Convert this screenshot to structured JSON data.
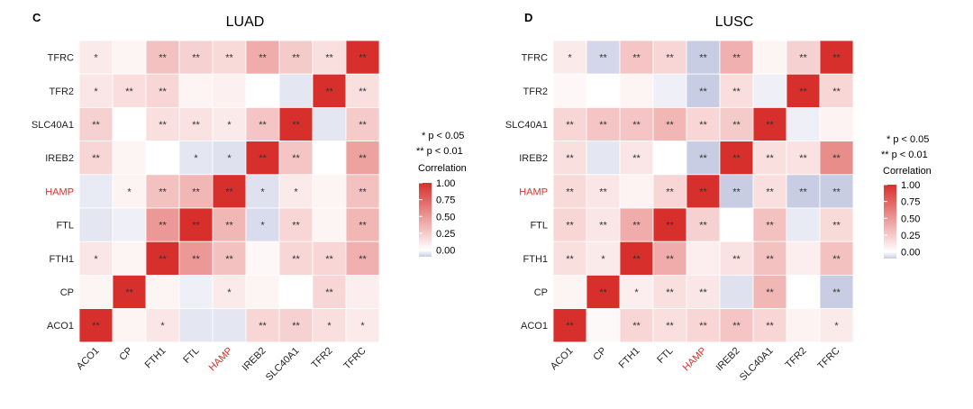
{
  "colors": {
    "high": "#d7302c",
    "mid": "#ffffff",
    "low": "#c9cde4",
    "highlight_label": "#d7302c",
    "stars": "#333333",
    "grid": "#ffffff"
  },
  "chart_data": [
    {
      "type": "heatmap",
      "panel_label": "C",
      "title": "LUAD",
      "rows": [
        "TFRC",
        "TFR2",
        "SLC40A1",
        "IREB2",
        "HAMP",
        "FTL",
        "FTH1",
        "CP",
        "ACO1"
      ],
      "cols": [
        "ACO1",
        "CP",
        "FTH1",
        "FTL",
        "HAMP",
        "IREB2",
        "SLC40A1",
        "TFR2",
        "TFRC"
      ],
      "highlight_labels": [
        "HAMP"
      ],
      "scale_range": [
        -0.1,
        1.0
      ],
      "values": [
        [
          0.1,
          0.05,
          0.3,
          0.22,
          0.18,
          0.4,
          0.25,
          0.15,
          1.0
        ],
        [
          0.12,
          0.16,
          0.2,
          0.05,
          0.07,
          0.0,
          -0.05,
          1.0,
          0.15
        ],
        [
          0.22,
          0.0,
          0.15,
          0.14,
          0.1,
          0.28,
          1.0,
          -0.05,
          0.25
        ],
        [
          0.2,
          0.05,
          0.0,
          -0.05,
          -0.06,
          1.0,
          0.28,
          0.0,
          0.45
        ],
        [
          -0.04,
          0.06,
          0.3,
          0.35,
          1.0,
          -0.06,
          0.1,
          0.05,
          0.3
        ],
        [
          -0.05,
          -0.03,
          0.5,
          1.0,
          0.35,
          -0.07,
          0.2,
          0.05,
          0.35
        ],
        [
          0.12,
          0.05,
          1.0,
          0.5,
          0.3,
          0.04,
          0.2,
          0.2,
          0.38
        ],
        [
          0.05,
          1.0,
          0.05,
          -0.03,
          0.1,
          0.05,
          0.0,
          0.2,
          0.08
        ],
        [
          1.0,
          0.05,
          0.12,
          -0.05,
          -0.05,
          0.2,
          0.22,
          0.15,
          0.1
        ]
      ],
      "stars": [
        [
          "*",
          "",
          "**",
          "**",
          "**",
          "**",
          "**",
          "**",
          "**"
        ],
        [
          "*",
          "**",
          "**",
          "",
          "",
          "",
          "",
          "**",
          "**"
        ],
        [
          "**",
          "",
          "**",
          "**",
          "*",
          "**",
          "**",
          "",
          "**"
        ],
        [
          "**",
          "",
          "",
          "*",
          "*",
          "**",
          "**",
          "",
          "**"
        ],
        [
          "",
          "*",
          "**",
          "**",
          "**",
          "*",
          "*",
          "",
          "**"
        ],
        [
          "",
          "",
          "**",
          "**",
          "**",
          "*",
          "**",
          "",
          "**"
        ],
        [
          "*",
          "",
          "**",
          "**",
          "**",
          "",
          "**",
          "**",
          "**"
        ],
        [
          "",
          "**",
          "",
          "",
          "*",
          "",
          "",
          "**",
          ""
        ],
        [
          "**",
          "",
          "*",
          "",
          "",
          "**",
          "**",
          "*",
          "*"
        ]
      ],
      "legend": {
        "sig1": "* p < 0.05",
        "sig2": "** p < 0.01",
        "title": "Correlation",
        "ticks": [
          "1.00",
          "0.75",
          "0.50",
          "0.25",
          "0.00"
        ],
        "tick_values": [
          1.0,
          0.75,
          0.5,
          0.25,
          0.0
        ]
      }
    },
    {
      "type": "heatmap",
      "panel_label": "D",
      "title": "LUSC",
      "rows": [
        "TFRC",
        "TFR2",
        "SLC40A1",
        "IREB2",
        "HAMP",
        "FTL",
        "FTH1",
        "CP",
        "ACO1"
      ],
      "cols": [
        "ACO1",
        "CP",
        "FTH1",
        "FTL",
        "HAMP",
        "IREB2",
        "SLC40A1",
        "TFR2",
        "TFRC"
      ],
      "highlight_labels": [
        "HAMP"
      ],
      "scale_range": [
        -0.1,
        1.0
      ],
      "values": [
        [
          0.1,
          -0.08,
          0.28,
          0.2,
          -0.1,
          0.38,
          0.05,
          0.22,
          1.0
        ],
        [
          0.04,
          0.0,
          0.05,
          -0.03,
          -0.1,
          0.16,
          -0.03,
          1.0,
          0.2
        ],
        [
          0.2,
          0.28,
          0.28,
          0.35,
          0.2,
          0.25,
          1.0,
          -0.03,
          0.06
        ],
        [
          0.15,
          -0.05,
          0.12,
          0.0,
          -0.1,
          1.0,
          0.15,
          0.14,
          0.55
        ],
        [
          0.18,
          0.12,
          0.06,
          0.2,
          1.0,
          -0.1,
          0.15,
          -0.1,
          -0.1
        ],
        [
          0.2,
          0.12,
          0.4,
          1.0,
          0.22,
          0.0,
          0.3,
          -0.04,
          0.18
        ],
        [
          0.15,
          0.1,
          1.0,
          0.4,
          0.08,
          0.14,
          0.3,
          0.08,
          0.3
        ],
        [
          0.05,
          1.0,
          0.08,
          0.15,
          0.12,
          -0.06,
          0.35,
          0.0,
          -0.12
        ],
        [
          1.0,
          0.03,
          0.2,
          0.15,
          0.2,
          0.28,
          0.2,
          0.06,
          0.1
        ]
      ],
      "stars": [
        [
          "*",
          "**",
          "**",
          "**",
          "**",
          "**",
          "",
          "**",
          "**"
        ],
        [
          "",
          "",
          "",
          "",
          "**",
          "**",
          "",
          "**",
          "**"
        ],
        [
          "**",
          "**",
          "**",
          "**",
          "**",
          "**",
          "**",
          "",
          ""
        ],
        [
          "**",
          "",
          "**",
          "",
          "**",
          "**",
          "**",
          "**",
          "**"
        ],
        [
          "**",
          "**",
          "",
          "**",
          "**",
          "**",
          "**",
          "**",
          "**"
        ],
        [
          "**",
          "**",
          "**",
          "**",
          "**",
          "",
          "**",
          "",
          "**"
        ],
        [
          "**",
          "*",
          "**",
          "**",
          "",
          "**",
          "**",
          "",
          "**"
        ],
        [
          "",
          "**",
          "*",
          "**",
          "**",
          "",
          "**",
          "",
          "**"
        ],
        [
          "**",
          "",
          "**",
          "**",
          "**",
          "**",
          "**",
          "",
          "*"
        ]
      ],
      "legend": {
        "sig1": "* p < 0.05",
        "sig2": "** p < 0.01",
        "title": "Correlation",
        "ticks": [
          "1.00",
          "0.75",
          "0.50",
          "0.25",
          "0.00"
        ],
        "tick_values": [
          1.0,
          0.75,
          0.5,
          0.25,
          0.0
        ]
      }
    }
  ]
}
